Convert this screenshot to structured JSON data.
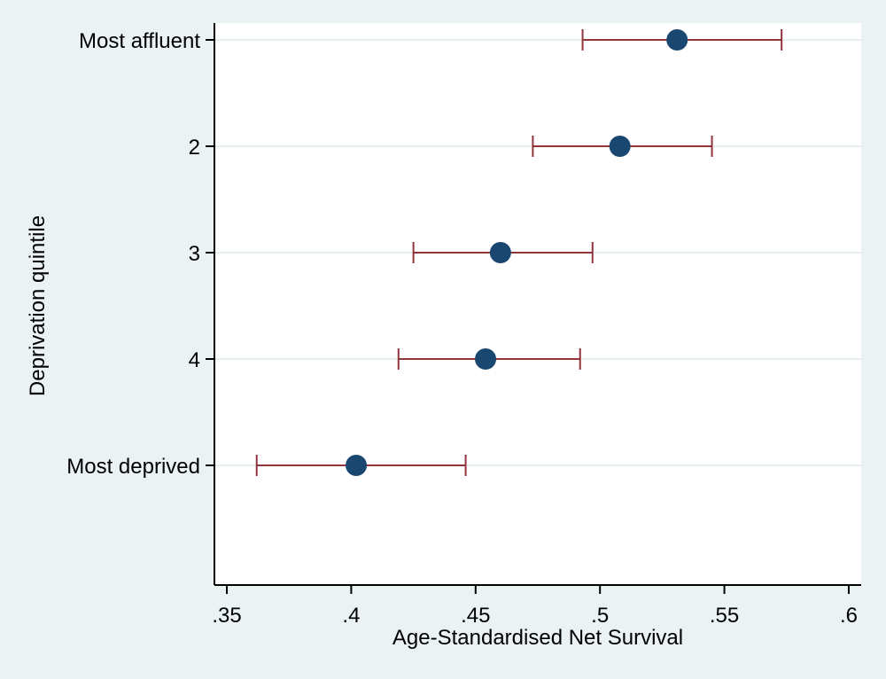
{
  "colors": {
    "outer_background": "#eaf2f3",
    "plot_background": "#ffffff",
    "gridline": "#e6eeef",
    "point": "#1a476f",
    "error_bar": "#90353b",
    "axis": "#000000"
  },
  "chart_data": {
    "type": "scatter",
    "orientation": "horizontal",
    "xlabel": "Age-Standardised Net Survival",
    "ylabel": "Deprivation quintile",
    "xlim": [
      0.345,
      0.605
    ],
    "x_ticks": [
      {
        "value": 0.35,
        "label": ".35"
      },
      {
        "value": 0.4,
        "label": ".4"
      },
      {
        "value": 0.45,
        "label": ".45"
      },
      {
        "value": 0.5,
        "label": ".5"
      },
      {
        "value": 0.55,
        "label": ".55"
      },
      {
        "value": 0.6,
        "label": ".6"
      }
    ],
    "categories": [
      "Most affluent",
      "2",
      "3",
      "4",
      "Most deprived"
    ],
    "values": [
      0.531,
      0.508,
      0.46,
      0.454,
      0.402
    ],
    "ci_lower": [
      0.493,
      0.473,
      0.425,
      0.419,
      0.362
    ],
    "ci_upper": [
      0.573,
      0.545,
      0.497,
      0.492,
      0.446
    ],
    "grid": true
  }
}
